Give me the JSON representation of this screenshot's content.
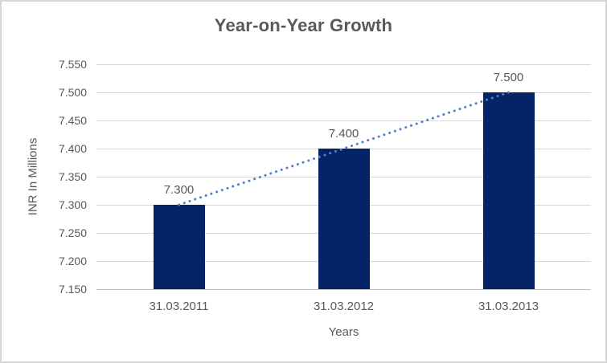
{
  "chart_data": {
    "type": "bar",
    "title": "Year-on-Year Growth",
    "xlabel": "Years",
    "ylabel": "INR In Millions",
    "categories": [
      "31.03.2011",
      "31.03.2012",
      "31.03.2013"
    ],
    "values": [
      7.3,
      7.4,
      7.5
    ],
    "data_labels": [
      "7.300",
      "7.400",
      "7.500"
    ],
    "y_ticks": [
      "7.550",
      "7.500",
      "7.450",
      "7.400",
      "7.350",
      "7.300",
      "7.250",
      "7.200",
      "7.150"
    ],
    "ylim": [
      7.15,
      7.55
    ],
    "grid": true,
    "legend": "none",
    "trendline": {
      "style": "dotted",
      "points": [
        7.3,
        7.5
      ]
    },
    "colors": {
      "bar": "#042467",
      "trendline": "#4e81c6",
      "gridline": "#d9d9d9",
      "axis_line": "#c3c3c3",
      "text": "#595959",
      "frame_border": "#d6d6d6",
      "background": "#ffffff"
    }
  }
}
